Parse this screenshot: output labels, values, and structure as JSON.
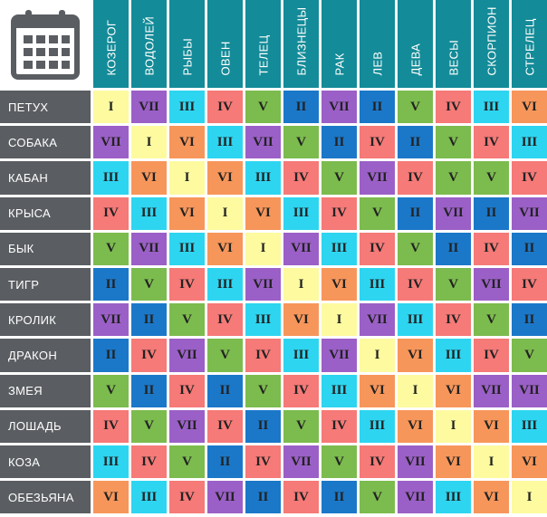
{
  "signs": [
    "КОЗЕРОГ",
    "ВОДОЛЕЙ",
    "РЫБЫ",
    "ОВЕН",
    "ТЕЛЕЦ",
    "БЛИЗНЕЦЫ",
    "РАК",
    "ЛЕВ",
    "ДЕВА",
    "ВЕСЫ",
    "СКОРПИОН",
    "СТРЕЛЕЦ"
  ],
  "animals": [
    "ПЕТУХ",
    "СОБАКА",
    "КАБАН",
    "КРЫСА",
    "БЫК",
    "ТИГР",
    "КРОЛИК",
    "ДРАКОН",
    "ЗМЕЯ",
    "ЛОШАДЬ",
    "КОЗА",
    "ОБЕЗЬЯНА"
  ],
  "values": [
    [
      "I",
      "VII",
      "III",
      "IV",
      "V",
      "II",
      "VII",
      "II",
      "V",
      "IV",
      "III",
      "VI"
    ],
    [
      "VII",
      "I",
      "VI",
      "III",
      "VII",
      "V",
      "II",
      "IV",
      "II",
      "V",
      "IV",
      "III"
    ],
    [
      "III",
      "VI",
      "I",
      "VI",
      "III",
      "IV",
      "V",
      "VII",
      "IV",
      "V",
      "V",
      "IV"
    ],
    [
      "IV",
      "III",
      "VI",
      "I",
      "VI",
      "III",
      "IV",
      "V",
      "II",
      "VII",
      "II",
      "VII"
    ],
    [
      "V",
      "VII",
      "III",
      "VI",
      "I",
      "VII",
      "III",
      "IV",
      "V",
      "II",
      "IV",
      "II"
    ],
    [
      "II",
      "V",
      "IV",
      "III",
      "VII",
      "I",
      "VI",
      "III",
      "IV",
      "V",
      "VII",
      "IV"
    ],
    [
      "VII",
      "II",
      "V",
      "IV",
      "III",
      "VI",
      "I",
      "VII",
      "III",
      "IV",
      "V",
      "II"
    ],
    [
      "II",
      "IV",
      "VII",
      "V",
      "IV",
      "III",
      "VII",
      "I",
      "VI",
      "III",
      "IV",
      "V"
    ],
    [
      "V",
      "II",
      "IV",
      "II",
      "V",
      "IV",
      "III",
      "VI",
      "I",
      "VI",
      "VII",
      "VII"
    ],
    [
      "IV",
      "V",
      "VII",
      "IV",
      "II",
      "V",
      "IV",
      "III",
      "VI",
      "I",
      "VI",
      "III"
    ],
    [
      "III",
      "IV",
      "V",
      "II",
      "IV",
      "VII",
      "V",
      "IV",
      "VII",
      "VI",
      "I",
      "VI"
    ],
    [
      "VI",
      "III",
      "IV",
      "VII",
      "II",
      "IV",
      "II",
      "V",
      "VII",
      "III",
      "VI",
      "I"
    ]
  ],
  "colors": {
    "I": "#fdfaa0",
    "II": "#1b78c9",
    "III": "#2ed5f0",
    "IV": "#f57a78",
    "V": "#7cbb4e",
    "VI": "#f7965a",
    "VII": "#9b60c7",
    "header": "#138b98",
    "row_header": "#5a5d61",
    "text": "#222222"
  },
  "corner_icon": "calendar-icon"
}
